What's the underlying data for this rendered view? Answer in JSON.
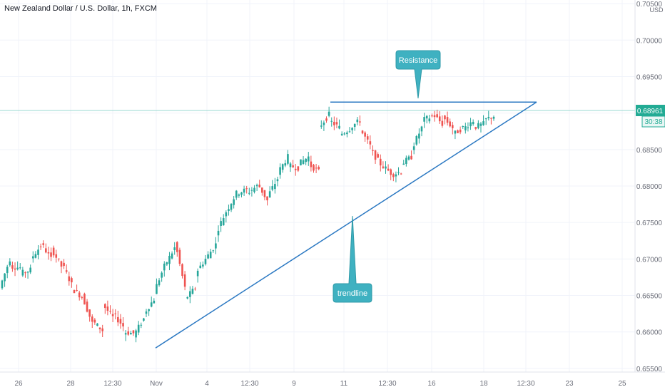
{
  "chart_data": {
    "type": "candlestick",
    "title": "New Zealand Dollar / U.S. Dollar, 1h, FXCM",
    "currency": "USD",
    "last_price": "0.68961",
    "countdown": "30:38",
    "y_axis": {
      "range": [
        0.6545,
        0.7055
      ],
      "ticks": [
        "0.70500",
        "0.70000",
        "0.69500",
        "0.69000",
        "0.68500",
        "0.68000",
        "0.67500",
        "0.67000",
        "0.66500",
        "0.66000",
        "0.65500"
      ],
      "tick_values": [
        0.705,
        0.7,
        0.695,
        0.69,
        0.685,
        0.68,
        0.675,
        0.67,
        0.665,
        0.66,
        0.655
      ]
    },
    "x_axis": {
      "ticks": [
        "26",
        "28",
        "12:30",
        "Nov",
        "4",
        "12:30",
        "9",
        "11",
        "12:30",
        "16",
        "18",
        "12:30",
        "23",
        "25"
      ]
    },
    "grid": true,
    "price_path": [
      [
        0.666,
        0.67
      ],
      [
        0.669,
        0.6688
      ],
      [
        0.668,
        0.6685
      ],
      [
        0.67,
        0.6718
      ],
      [
        0.6722,
        0.67
      ],
      [
        0.6715,
        0.669
      ],
      [
        0.6695,
        0.6665
      ],
      [
        0.666,
        0.6648
      ],
      [
        0.665,
        0.6612
      ],
      [
        0.6615,
        0.6602
      ],
      [
        0.6638,
        0.662
      ],
      [
        0.6625,
        0.6608
      ],
      [
        0.66,
        0.6598
      ],
      [
        0.6595,
        0.6618
      ],
      [
        0.6625,
        0.6645
      ],
      [
        0.6655,
        0.669
      ],
      [
        0.669,
        0.6715
      ],
      [
        0.6725,
        0.666
      ],
      [
        0.6645,
        0.666
      ],
      [
        0.668,
        0.67
      ],
      [
        0.67,
        0.672
      ],
      [
        0.6735,
        0.6765
      ],
      [
        0.6765,
        0.679
      ],
      [
        0.679,
        0.6795
      ],
      [
        0.679,
        0.68
      ],
      [
        0.6805,
        0.678
      ],
      [
        0.6785,
        0.681
      ],
      [
        0.6818,
        0.684
      ],
      [
        0.6828,
        0.6825
      ],
      [
        0.683,
        0.684
      ],
      [
        0.683,
        0.682
      ],
      [
        0.688,
        0.6898
      ],
      [
        0.689,
        0.688
      ],
      [
        0.687,
        0.6878
      ],
      [
        0.688,
        0.689
      ],
      [
        0.6878,
        0.6855
      ],
      [
        0.685,
        0.683
      ],
      [
        0.683,
        0.6818
      ],
      [
        0.6815,
        0.682
      ],
      [
        0.683,
        0.684
      ],
      [
        0.685,
        0.688
      ],
      [
        0.689,
        0.6895
      ],
      [
        0.69,
        0.6885
      ],
      [
        0.6895,
        0.688
      ],
      [
        0.687,
        0.688
      ],
      [
        0.6878,
        0.689
      ],
      [
        0.688,
        0.6885
      ],
      [
        0.689,
        0.6896
      ]
    ],
    "annotations": [
      {
        "kind": "horizontal-line",
        "label": "Resistance",
        "price": 0.6915
      },
      {
        "kind": "trendline",
        "label": "trendline",
        "from_price": 0.6578,
        "to_price": 0.6915
      }
    ]
  },
  "colors": {
    "up": "#26a69a",
    "down": "#ef5350",
    "line": "#2a78c2",
    "callout": "#3fb1c1",
    "grid": "#f0f3fa",
    "axis_text": "#6a6d78",
    "price_tag": "#22ab94"
  }
}
